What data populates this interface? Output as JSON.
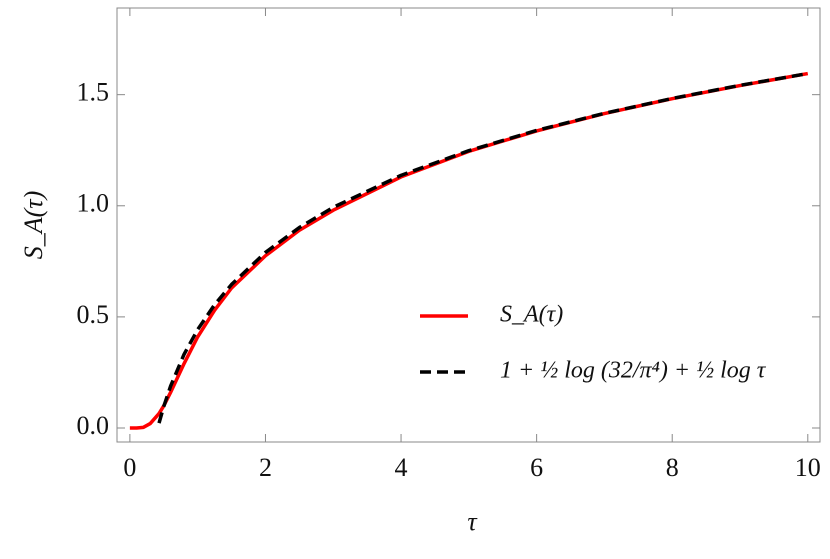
{
  "chart_data": {
    "type": "line",
    "x_label": "τ",
    "y_label": "S_A(τ)",
    "x": [
      0,
      0.1,
      0.2,
      0.3,
      0.43,
      0.5,
      0.6,
      0.8,
      1,
      1.25,
      1.5,
      2,
      2.5,
      3,
      4,
      5,
      6,
      7,
      8,
      9,
      10
    ],
    "series": [
      {
        "name": "S_A(τ)",
        "color": "#ff0000",
        "dash": false,
        "values": [
          0,
          0,
          0.003,
          0.02,
          0.065,
          0.1,
          0.16,
          0.29,
          0.41,
          0.53,
          0.63,
          0.775,
          0.89,
          0.98,
          1.13,
          1.245,
          1.337,
          1.415,
          1.482,
          1.541,
          1.595
        ]
      },
      {
        "name": "1 + ½ log (32/π⁴) + ½ log τ",
        "color": "#000000",
        "dash": true,
        "values": [
          null,
          null,
          null,
          null,
          0.022,
          0.097,
          0.188,
          0.332,
          0.443,
          0.555,
          0.646,
          0.79,
          0.902,
          0.993,
          1.137,
          1.248,
          1.339,
          1.416,
          1.483,
          1.542,
          1.595
        ]
      }
    ],
    "xlim": [
      -0.19,
      10.18
    ],
    "ylim": [
      -0.063,
      1.89
    ],
    "xticks": [
      0,
      2,
      4,
      6,
      8,
      10
    ],
    "yticks": [
      {
        "value": 0,
        "label": "0.0"
      },
      {
        "value": 0.5,
        "label": "0.5"
      },
      {
        "value": 1,
        "label": "1.0"
      },
      {
        "value": 1.5,
        "label": "1.5"
      }
    ],
    "legend": "center-right"
  }
}
